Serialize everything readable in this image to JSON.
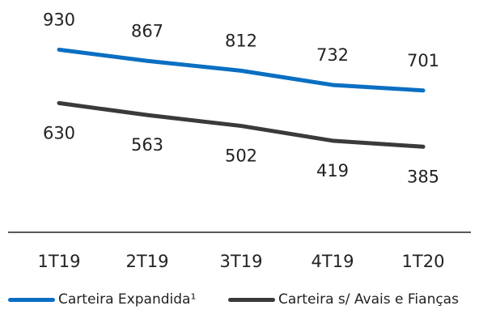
{
  "chart_data": {
    "type": "line",
    "categories": [
      "1T19",
      "2T19",
      "3T19",
      "4T19",
      "1T20"
    ],
    "series": [
      {
        "name": "Carteira Expandida¹",
        "values": [
          930,
          867,
          812,
          732,
          701
        ],
        "color": "#0a6fc2"
      },
      {
        "name": "Carteira s/ Avais e Fianças",
        "values": [
          630,
          563,
          502,
          419,
          385
        ],
        "color": "#3a3a3a"
      }
    ],
    "title": "",
    "xlabel": "",
    "ylabel": "",
    "grid": false,
    "legend_position": "bottom"
  }
}
